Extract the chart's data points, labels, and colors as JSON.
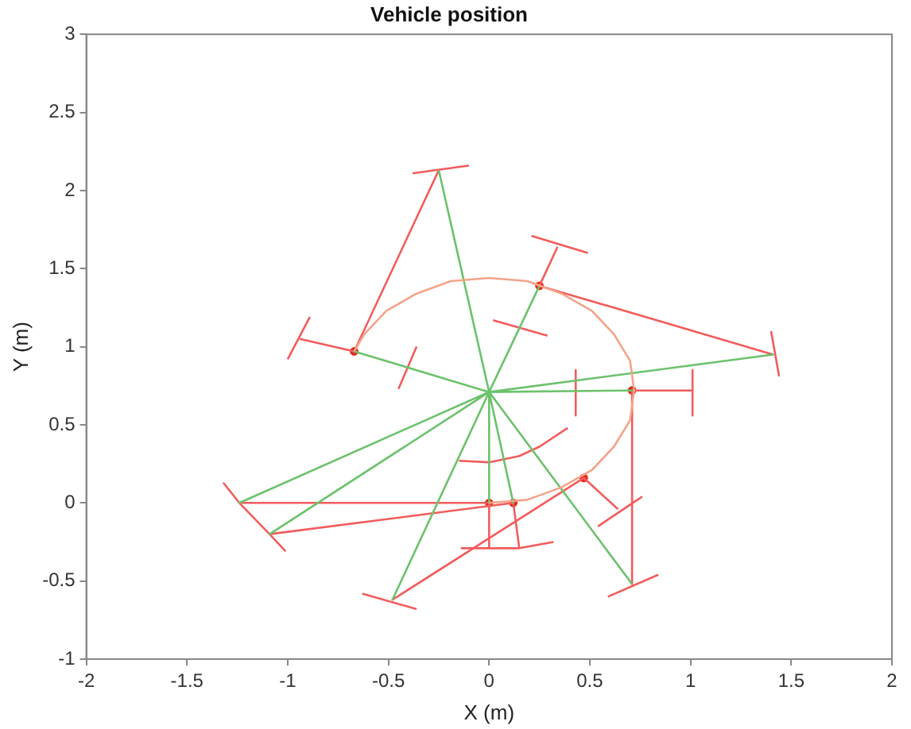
{
  "chart_data": {
    "type": "line",
    "title": "Vehicle position",
    "xlabel": "X (m)",
    "ylabel": "Y (m)",
    "xlim": [
      -2,
      2
    ],
    "xticks": [
      -2,
      -1.5,
      -1,
      -0.5,
      0,
      0.5,
      1,
      1.5,
      2
    ],
    "ylim": [
      -1,
      3
    ],
    "yticks": [
      -1,
      -0.5,
      0,
      0.5,
      1,
      1.5,
      2,
      2.5,
      3
    ],
    "grid": false,
    "legend": false,
    "series": [
      {
        "color": "#f4a38a",
        "x": [
          -0.67,
          -0.62,
          -0.51,
          -0.36,
          -0.19,
          0,
          0.19,
          0.36,
          0.51,
          0.62,
          0.7,
          0.72,
          0.7,
          0.62,
          0.51,
          0.36,
          0.19,
          0
        ],
        "values": [
          0.97,
          1.08,
          1.23,
          1.34,
          1.42,
          1.44,
          1.42,
          1.34,
          1.23,
          1.08,
          0.91,
          0.72,
          0.53,
          0.36,
          0.21,
          0.1,
          0.02,
          0
        ]
      },
      {
        "color": "#6cc26c",
        "x": [
          -0.25,
          0,
          -0.67,
          0,
          0.25,
          0,
          1.41,
          0,
          0.71,
          0,
          -1.24,
          0,
          -1.09,
          0,
          -0.48,
          0,
          0,
          0,
          0.12,
          0,
          0.71
        ],
        "values": [
          2.13,
          0.71,
          0.97,
          0.71,
          1.39,
          0.71,
          0.95,
          0.71,
          0.72,
          0.71,
          0,
          0.71,
          -0.2,
          0.71,
          -0.62,
          0.71,
          0,
          0.71,
          0,
          0.71,
          -0.52
        ]
      },
      {
        "color": "#f25c5c",
        "x": [
          -0.94,
          -0.67,
          -0.25
        ],
        "values": [
          1.05,
          0.97,
          2.13
        ]
      },
      {
        "color": "#f25c5c",
        "x": [
          -0.38,
          -0.1
        ],
        "values": [
          2.11,
          2.16
        ]
      },
      {
        "color": "#f25c5c",
        "x": [
          -0.89,
          -1
        ],
        "values": [
          1.19,
          0.92
        ]
      },
      {
        "color": "#f25c5c",
        "x": [
          -0.36,
          -0.45
        ],
        "values": [
          1,
          0.73
        ]
      },
      {
        "color": "#f25c5c",
        "x": [
          0.34,
          0.25,
          1.41
        ],
        "values": [
          1.64,
          1.39,
          0.95
        ]
      },
      {
        "color": "#f25c5c",
        "x": [
          0.21,
          0.49
        ],
        "values": [
          1.71,
          1.6
        ]
      },
      {
        "color": "#f25c5c",
        "x": [
          1.4,
          1.44
        ],
        "values": [
          1.1,
          0.81
        ]
      },
      {
        "color": "#f25c5c",
        "x": [
          0.02,
          0.29
        ],
        "values": [
          1.17,
          1.07
        ]
      },
      {
        "color": "#f25c5c",
        "x": [
          1.01,
          0.71,
          0.71
        ],
        "values": [
          0.72,
          0.72,
          -0.52
        ]
      },
      {
        "color": "#f25c5c",
        "x": [
          1.01,
          1.01
        ],
        "values": [
          0.85,
          0.56
        ]
      },
      {
        "color": "#f25c5c",
        "x": [
          0.43,
          0.43
        ],
        "values": [
          0.85,
          0.56
        ]
      },
      {
        "color": "#f25c5c",
        "x": [
          0.59,
          0.84
        ],
        "values": [
          -0.6,
          -0.46
        ]
      },
      {
        "color": "#f25c5c",
        "x": [
          0.64,
          0.47,
          -0.48
        ],
        "values": [
          -0.04,
          0.16,
          -0.62
        ]
      },
      {
        "color": "#f25c5c",
        "x": [
          0.54,
          0.76
        ],
        "values": [
          -0.15,
          0.04
        ]
      },
      {
        "color": "#f25c5c",
        "x": [
          -0.63,
          -0.36
        ],
        "values": [
          -0.58,
          -0.68
        ]
      },
      {
        "color": "#f25c5c",
        "x": [
          -0.15,
          0,
          0.15,
          0.25,
          0.39
        ],
        "values": [
          0.27,
          0.26,
          0.3,
          0.36,
          0.48
        ]
      },
      {
        "color": "#f25c5c",
        "x": [
          -1.24,
          0,
          0
        ],
        "values": [
          0,
          0,
          -0.29
        ]
      },
      {
        "color": "#f25c5c",
        "x": [
          -1.32,
          -1.24,
          -1.09,
          -1.01
        ],
        "values": [
          0.13,
          0,
          -0.2,
          -0.31
        ]
      },
      {
        "color": "#f25c5c",
        "x": [
          -1.09,
          0.12,
          0.15
        ],
        "values": [
          -0.2,
          0,
          -0.29
        ]
      },
      {
        "color": "#f25c5c",
        "x": [
          -0.14,
          0.15,
          0.32
        ],
        "values": [
          -0.29,
          -0.29,
          -0.25
        ]
      },
      {
        "type": "scatter",
        "marker": "circle",
        "color": "#e8281e",
        "x": [
          -0.67,
          0.25,
          0.71,
          0.47,
          0.12,
          0
        ],
        "values": [
          0.97,
          1.39,
          0.72,
          0.16,
          0,
          0
        ]
      }
    ]
  }
}
